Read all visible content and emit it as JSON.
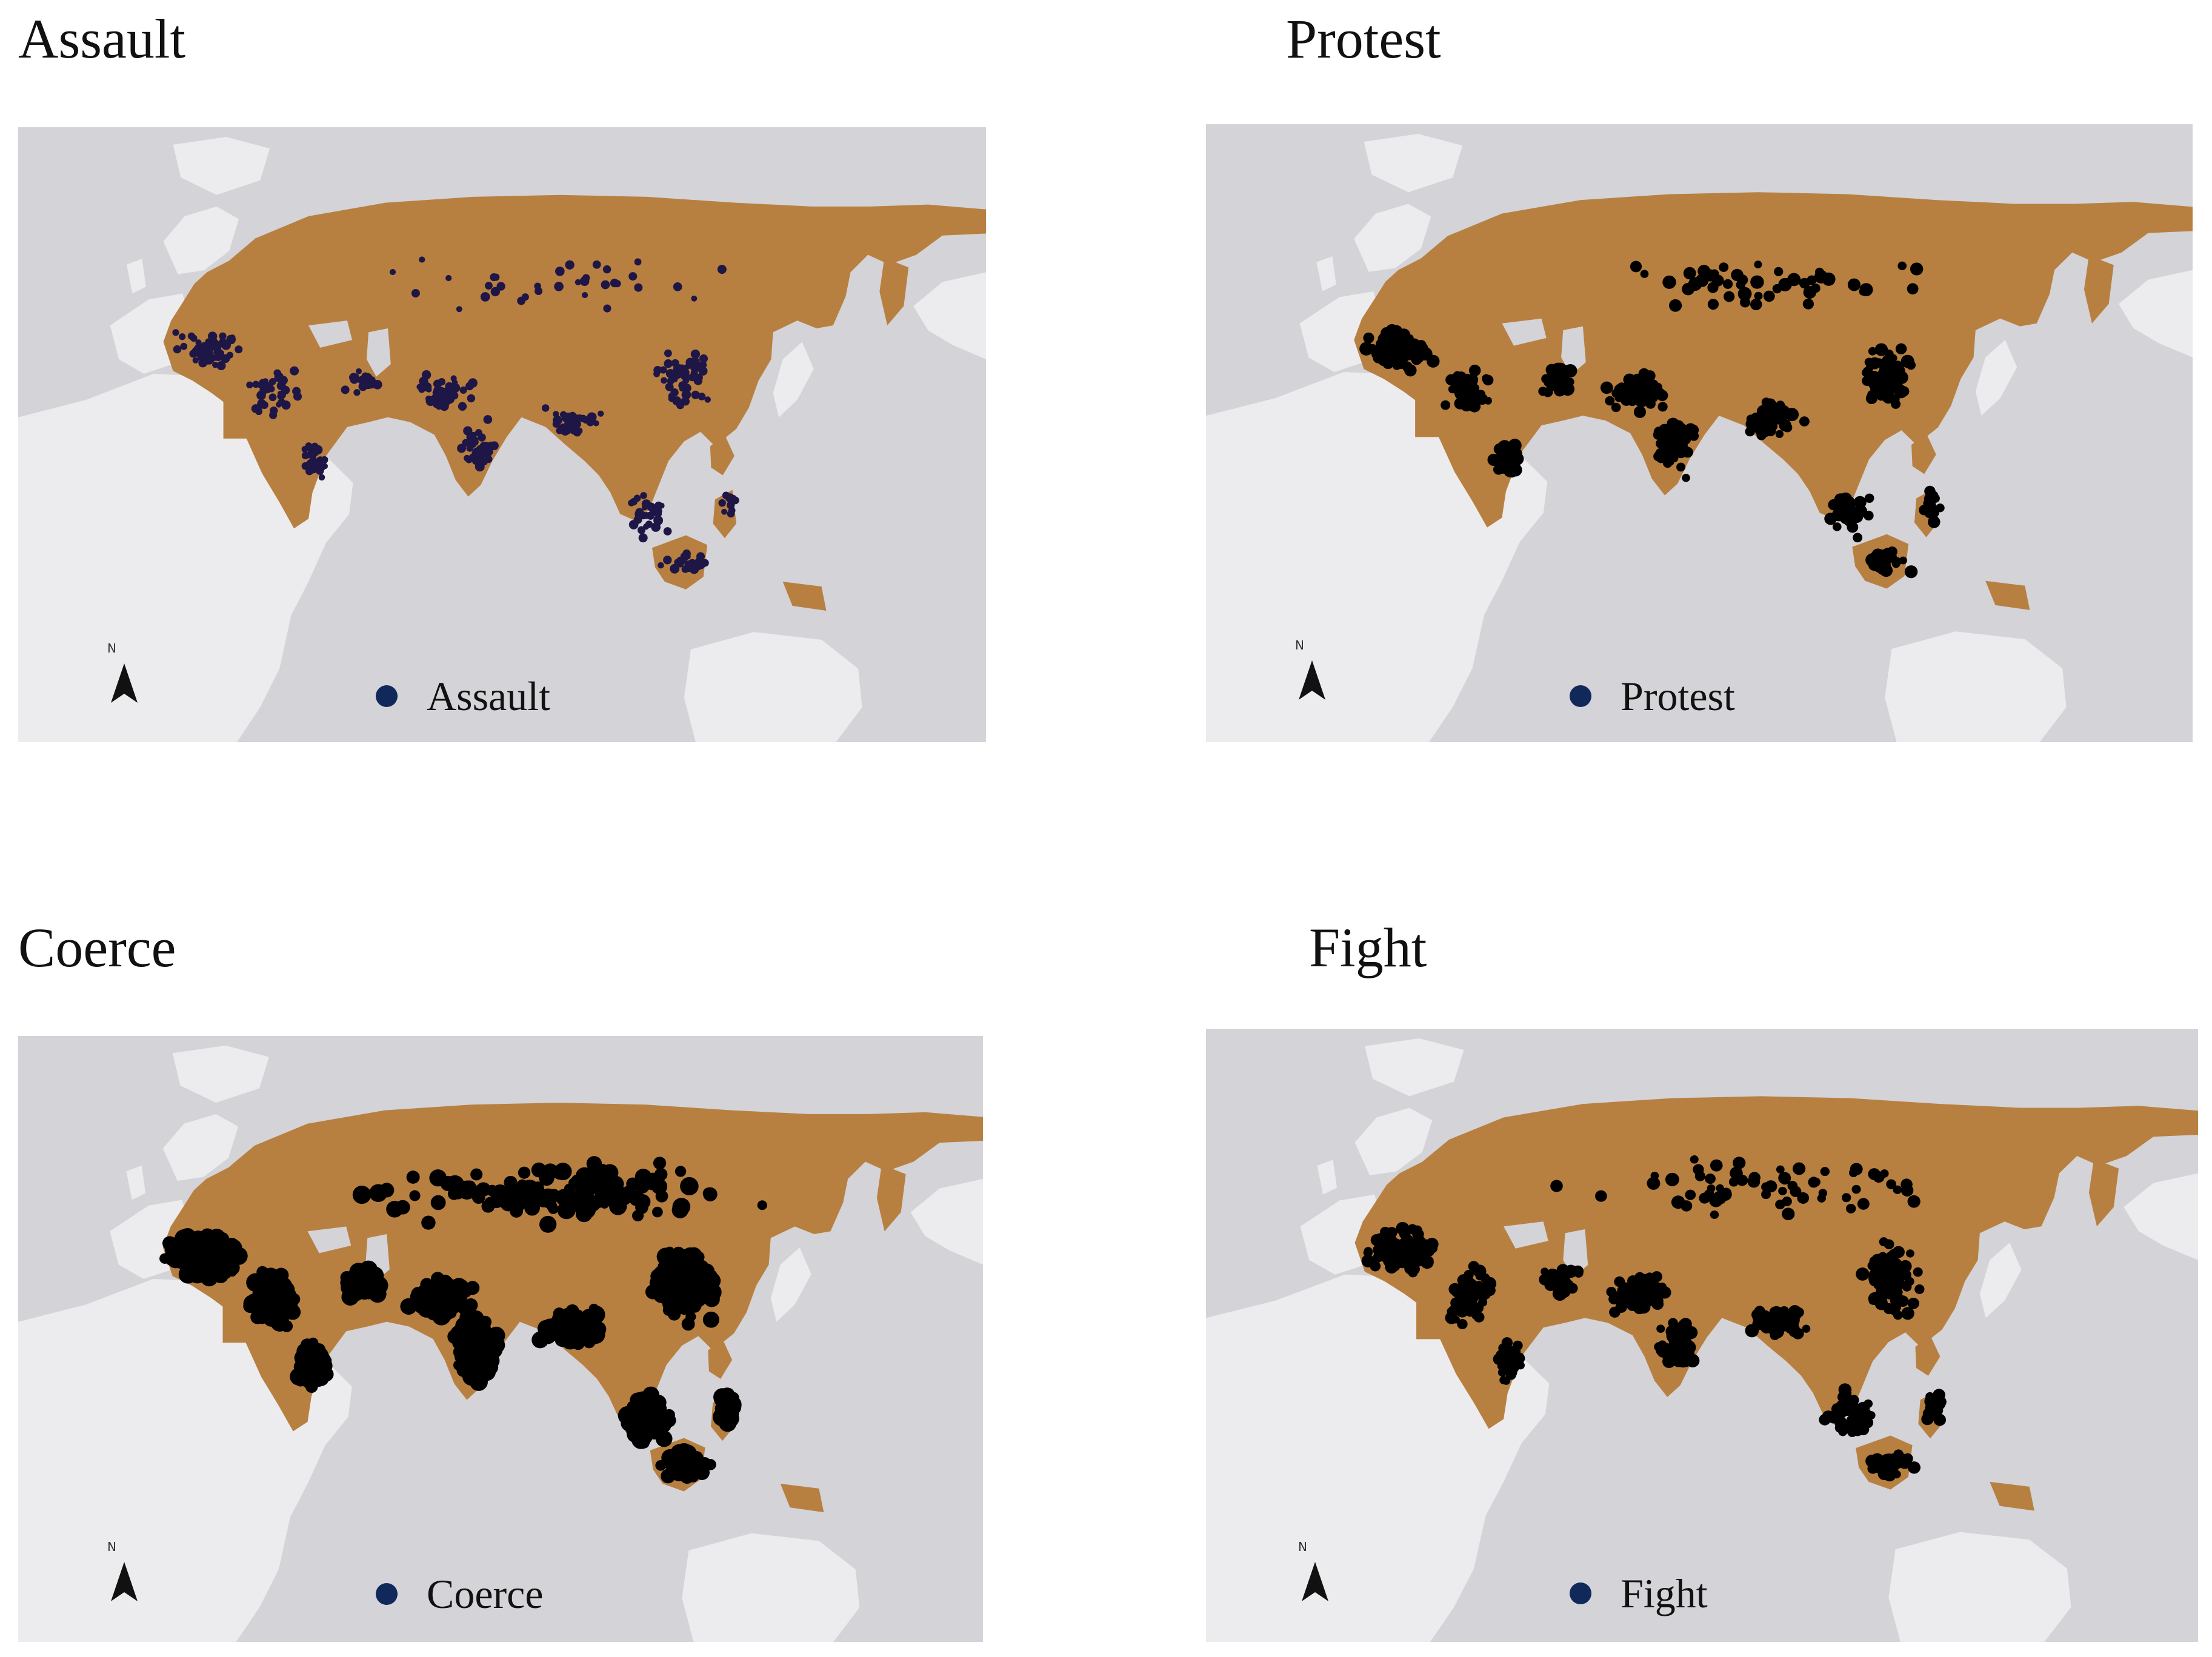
{
  "panels": [
    {
      "id": "assault",
      "title": "Assault",
      "legend_label": "Assault",
      "dot_count": 420,
      "colors": {
        "dot": "#1e1646"
      }
    },
    {
      "id": "protest",
      "title": "Protest",
      "legend_label": "Protest",
      "dot_count": 560,
      "colors": {
        "dot": "#000000"
      }
    },
    {
      "id": "coerce",
      "title": "Coerce",
      "legend_label": "Coerce",
      "dot_count": 1700,
      "colors": {
        "dot": "#000000"
      }
    },
    {
      "id": "fight",
      "title": "Fight",
      "legend_label": "Fight",
      "dot_count": 760,
      "colors": {
        "dot": "#000000"
      }
    }
  ],
  "colors": {
    "ocean": "#d3d3d8",
    "other_land": "#ececee",
    "eurasia_land": "#b88040",
    "legend_dot": "#10295a",
    "text": "#111111"
  },
  "icons": {
    "north_arrow": "north-arrow-icon"
  }
}
